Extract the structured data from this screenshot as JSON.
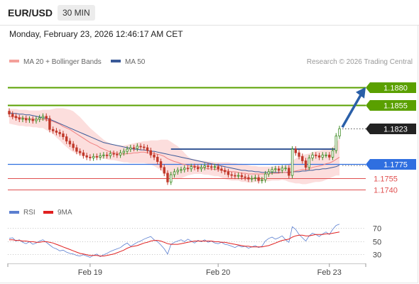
{
  "header": {
    "symbol": "EUR/USD",
    "timeframe": "30 MIN",
    "timestamp": "Monday, February 23, 2026 12:46:17 AM CET"
  },
  "legend": {
    "items": [
      {
        "label": "MA 20 + Bollinger Bands",
        "color": "#f4a09a"
      },
      {
        "label": "MA 50",
        "color": "#3a5a98"
      }
    ],
    "copyright": "Research © 2026 Trading Central"
  },
  "rsi_legend": {
    "items": [
      {
        "label": "RSI",
        "color": "#5b7fd0"
      },
      {
        "label": "9MA",
        "color": "#e02020"
      }
    ]
  },
  "colors": {
    "green_level": "#5aa000",
    "blue_level": "#2f6fe0",
    "red_level": "#e05050",
    "candle_up": "#3a8a20",
    "candle_down": "#c0392b",
    "ma50": "#3a5a98",
    "ma20": "#f08080",
    "band": "#fbd0cf",
    "arrow": "#2a5fa8",
    "last_price_box": "#222222"
  },
  "chart_data": [
    {
      "type": "candlestick",
      "title": "",
      "y_range": [
        1.1725,
        1.1905
      ],
      "x_ticks": [
        {
          "label": "Feb 19",
          "index": 24
        },
        {
          "label": "Feb 20",
          "index": 62
        },
        {
          "label": "Feb 23",
          "index": 95
        }
      ],
      "levels": [
        {
          "value": 1.188,
          "label": "1.1880",
          "style": "resistance"
        },
        {
          "value": 1.1855,
          "label": "1.1855",
          "style": "resistance"
        },
        {
          "value": 1.1823,
          "label": "1.1823",
          "style": "last"
        },
        {
          "value": 1.1775,
          "label": "1.1775",
          "style": "pivot"
        },
        {
          "value": 1.1755,
          "label": "1.1755",
          "style": "support"
        },
        {
          "value": 1.174,
          "label": "1.1740",
          "style": "support"
        }
      ],
      "close": [
        1.1843,
        1.184,
        1.1838,
        1.1836,
        1.1837,
        1.1835,
        1.1836,
        1.1834,
        1.1836,
        1.1838,
        1.184,
        1.1837,
        1.1822,
        1.182,
        1.1818,
        1.1816,
        1.1812,
        1.1806,
        1.1802,
        1.1797,
        1.1792,
        1.179,
        1.1786,
        1.1784,
        1.1783,
        1.1785,
        1.1784,
        1.1786,
        1.1787,
        1.1786,
        1.1789,
        1.1788,
        1.1787,
        1.179,
        1.1792,
        1.1795,
        1.1797,
        1.1796,
        1.1799,
        1.1798,
        1.1797,
        1.1793,
        1.1787,
        1.1784,
        1.1778,
        1.177,
        1.1762,
        1.175,
        1.176,
        1.1764,
        1.1766,
        1.1767,
        1.1769,
        1.1768,
        1.1771,
        1.177,
        1.1768,
        1.177,
        1.1772,
        1.1771,
        1.177,
        1.1771,
        1.1768,
        1.1766,
        1.1764,
        1.176,
        1.1759,
        1.1758,
        1.1759,
        1.1757,
        1.1756,
        1.1754,
        1.1755,
        1.1756,
        1.1752,
        1.1753,
        1.1761,
        1.1764,
        1.1767,
        1.1768,
        1.1766,
        1.1769,
        1.1769,
        1.1759,
        1.1795,
        1.179,
        1.1785,
        1.1779,
        1.177,
        1.1783,
        1.1787,
        1.1786,
        1.1784,
        1.1787,
        1.1787,
        1.1784,
        1.1793,
        1.1813,
        1.1823
      ],
      "ma20": [
        1.184,
        1.1839,
        1.1839,
        1.1838,
        1.1838,
        1.1837,
        1.1837,
        1.1836,
        1.1836,
        1.1836,
        1.1836,
        1.1835,
        1.1834,
        1.1833,
        1.1831,
        1.1829,
        1.1826,
        1.1824,
        1.1822,
        1.1819,
        1.1816,
        1.1813,
        1.181,
        1.1807,
        1.1804,
        1.1802,
        1.18,
        1.1797,
        1.1795,
        1.1793,
        1.1791,
        1.179,
        1.1789,
        1.1789,
        1.1788,
        1.1789,
        1.1789,
        1.179,
        1.179,
        1.1791,
        1.1791,
        1.179,
        1.179,
        1.1789,
        1.1788,
        1.1787,
        1.1785,
        1.1782,
        1.178,
        1.1778,
        1.1777,
        1.1775,
        1.1774,
        1.1773,
        1.1772,
        1.1772,
        1.1771,
        1.177,
        1.1769,
        1.1768,
        1.1768,
        1.1767,
        1.1767,
        1.1766,
        1.1765,
        1.1765,
        1.1764,
        1.1764,
        1.1763,
        1.1762,
        1.1762,
        1.1761,
        1.1761,
        1.1761,
        1.1761,
        1.1761,
        1.1761,
        1.1761,
        1.1762,
        1.1762,
        1.1762,
        1.1763,
        1.1763,
        1.1762,
        1.1764,
        1.1765,
        1.1766,
        1.1767,
        1.1767,
        1.1768,
        1.177,
        1.1771,
        1.1772,
        1.1773,
        1.1775,
        1.1776,
        1.1778,
        1.1781,
        1.1784
      ],
      "bb_upper": [
        1.185,
        1.185,
        1.185,
        1.1849,
        1.1849,
        1.1849,
        1.1848,
        1.1848,
        1.1848,
        1.1848,
        1.1849,
        1.1849,
        1.1849,
        1.185,
        1.1851,
        1.1851,
        1.1851,
        1.185,
        1.1849,
        1.1847,
        1.1843,
        1.1839,
        1.1834,
        1.1829,
        1.1824,
        1.182,
        1.1816,
        1.1812,
        1.1808,
        1.1805,
        1.1803,
        1.1801,
        1.18,
        1.18,
        1.18,
        1.1801,
        1.1802,
        1.1803,
        1.1804,
        1.1805,
        1.1806,
        1.1806,
        1.1807,
        1.1807,
        1.1807,
        1.1808,
        1.1808,
        1.1808,
        1.1805,
        1.1802,
        1.1799,
        1.1795,
        1.179,
        1.1785,
        1.1782,
        1.1781,
        1.178,
        1.1779,
        1.1779,
        1.1778,
        1.1778,
        1.1777,
        1.1777,
        1.1777,
        1.1777,
        1.1777,
        1.1776,
        1.1776,
        1.1775,
        1.1775,
        1.1774,
        1.1773,
        1.1772,
        1.1772,
        1.1771,
        1.1771,
        1.1771,
        1.1771,
        1.1771,
        1.1772,
        1.1772,
        1.1772,
        1.1773,
        1.1775,
        1.1779,
        1.1782,
        1.1785,
        1.1787,
        1.1788,
        1.1789,
        1.1791,
        1.1792,
        1.1793,
        1.1794,
        1.1795,
        1.1796,
        1.1798,
        1.1803,
        1.181
      ],
      "bb_lower": [
        1.183,
        1.1829,
        1.1828,
        1.1827,
        1.1827,
        1.1826,
        1.1826,
        1.1825,
        1.1825,
        1.1824,
        1.1824,
        1.1821,
        1.1819,
        1.1816,
        1.1811,
        1.1807,
        1.1802,
        1.1798,
        1.1794,
        1.1791,
        1.1789,
        1.1787,
        1.1786,
        1.1785,
        1.1784,
        1.1783,
        1.1783,
        1.1782,
        1.1782,
        1.1781,
        1.178,
        1.178,
        1.1779,
        1.1778,
        1.1777,
        1.1777,
        1.1776,
        1.1776,
        1.1776,
        1.1776,
        1.1776,
        1.1775,
        1.1774,
        1.1772,
        1.1769,
        1.1766,
        1.1762,
        1.1757,
        1.1755,
        1.1754,
        1.1754,
        1.1755,
        1.1757,
        1.1759,
        1.176,
        1.1761,
        1.1761,
        1.1761,
        1.176,
        1.176,
        1.1759,
        1.1758,
        1.1758,
        1.1756,
        1.1754,
        1.1753,
        1.1752,
        1.1752,
        1.1752,
        1.175,
        1.175,
        1.1749,
        1.1749,
        1.175,
        1.175,
        1.1751,
        1.1751,
        1.1751,
        1.1752,
        1.1752,
        1.1752,
        1.1753,
        1.1752,
        1.175,
        1.1749,
        1.1748,
        1.1748,
        1.1747,
        1.1747,
        1.1748,
        1.1749,
        1.175,
        1.175,
        1.1751,
        1.1753,
        1.1755,
        1.1757,
        1.1759,
        1.1759
      ],
      "ma50": [
        1.1845,
        1.1844,
        1.1844,
        1.1843,
        1.1843,
        1.1842,
        1.1842,
        1.1841,
        1.184,
        1.1839,
        1.1838,
        1.1837,
        1.1836,
        1.1834,
        1.1832,
        1.183,
        1.1828,
        1.1826,
        1.1824,
        1.1822,
        1.182,
        1.1818,
        1.1816,
        1.1814,
        1.1812,
        1.181,
        1.1808,
        1.1806,
        1.1804,
        1.1803,
        1.1802,
        1.1801,
        1.18,
        1.1799,
        1.1798,
        1.1797,
        1.1796,
        1.1795,
        1.1795,
        1.1794,
        1.1794,
        1.1793,
        1.1792,
        1.1792,
        1.1791,
        1.179,
        1.1789,
        1.1788,
        1.1787,
        1.1786,
        1.1785,
        1.1784,
        1.1783,
        1.1782,
        1.1781,
        1.178,
        1.1779,
        1.1778,
        1.1777,
        1.1776,
        1.1775,
        1.1774,
        1.1773,
        1.1772,
        1.1771,
        1.177,
        1.1769,
        1.1768,
        1.1767,
        1.1766,
        1.1766,
        1.1765,
        1.1765,
        1.1764,
        1.1764,
        1.1763,
        1.1763,
        1.1763,
        1.1763,
        1.1763,
        1.1763,
        1.1763,
        1.1763,
        1.1763,
        1.1764,
        1.1764,
        1.1764,
        1.1765,
        1.1765,
        1.1766,
        1.1766,
        1.1767,
        1.1767,
        1.1768,
        1.1768,
        1.1769,
        1.177,
        1.1771,
        1.1773
      ],
      "pivot_line": {
        "value": 1.1795,
        "from_index": 48,
        "to_index": 97
      }
    },
    {
      "type": "line",
      "title": "",
      "y_range": [
        20,
        80
      ],
      "y_ticks": [
        70,
        50,
        30
      ],
      "series": [
        {
          "name": "RSI",
          "values": [
            54,
            55,
            50,
            52,
            48,
            46,
            49,
            45,
            47,
            50,
            52,
            48,
            44,
            40,
            38,
            35,
            36,
            33,
            31,
            30,
            28,
            27,
            29,
            27,
            25,
            28,
            30,
            26,
            29,
            31,
            34,
            36,
            38,
            40,
            44,
            47,
            42,
            45,
            48,
            50,
            53,
            55,
            57,
            52,
            49,
            44,
            38,
            30,
            45,
            48,
            50,
            52,
            49,
            53,
            50,
            47,
            51,
            49,
            52,
            48,
            50,
            47,
            46,
            48,
            45,
            44,
            42,
            40,
            43,
            41,
            42,
            39,
            41,
            43,
            40,
            42,
            50,
            54,
            56,
            53,
            55,
            58,
            52,
            48,
            72,
            68,
            60,
            55,
            50,
            58,
            62,
            60,
            57,
            61,
            64,
            60,
            68,
            74,
            76
          ]
        },
        {
          "name": "9MA",
          "values": [
            52,
            52,
            51,
            51,
            50,
            50,
            49,
            49,
            48,
            48,
            49,
            49,
            48,
            47,
            45,
            43,
            41,
            39,
            37,
            35,
            33,
            31,
            30,
            29,
            28,
            28,
            28,
            27,
            27,
            28,
            29,
            30,
            32,
            34,
            36,
            39,
            41,
            42,
            43,
            45,
            47,
            48,
            50,
            51,
            51,
            50,
            48,
            46,
            45,
            45,
            45,
            46,
            47,
            48,
            49,
            50,
            50,
            50,
            50,
            50,
            50,
            49,
            49,
            48,
            48,
            47,
            46,
            45,
            44,
            43,
            42,
            42,
            41,
            41,
            41,
            41,
            42,
            43,
            45,
            47,
            49,
            51,
            52,
            53,
            56,
            58,
            59,
            59,
            58,
            58,
            59,
            60,
            60,
            60,
            61,
            61,
            62,
            63,
            64
          ]
        }
      ]
    }
  ]
}
